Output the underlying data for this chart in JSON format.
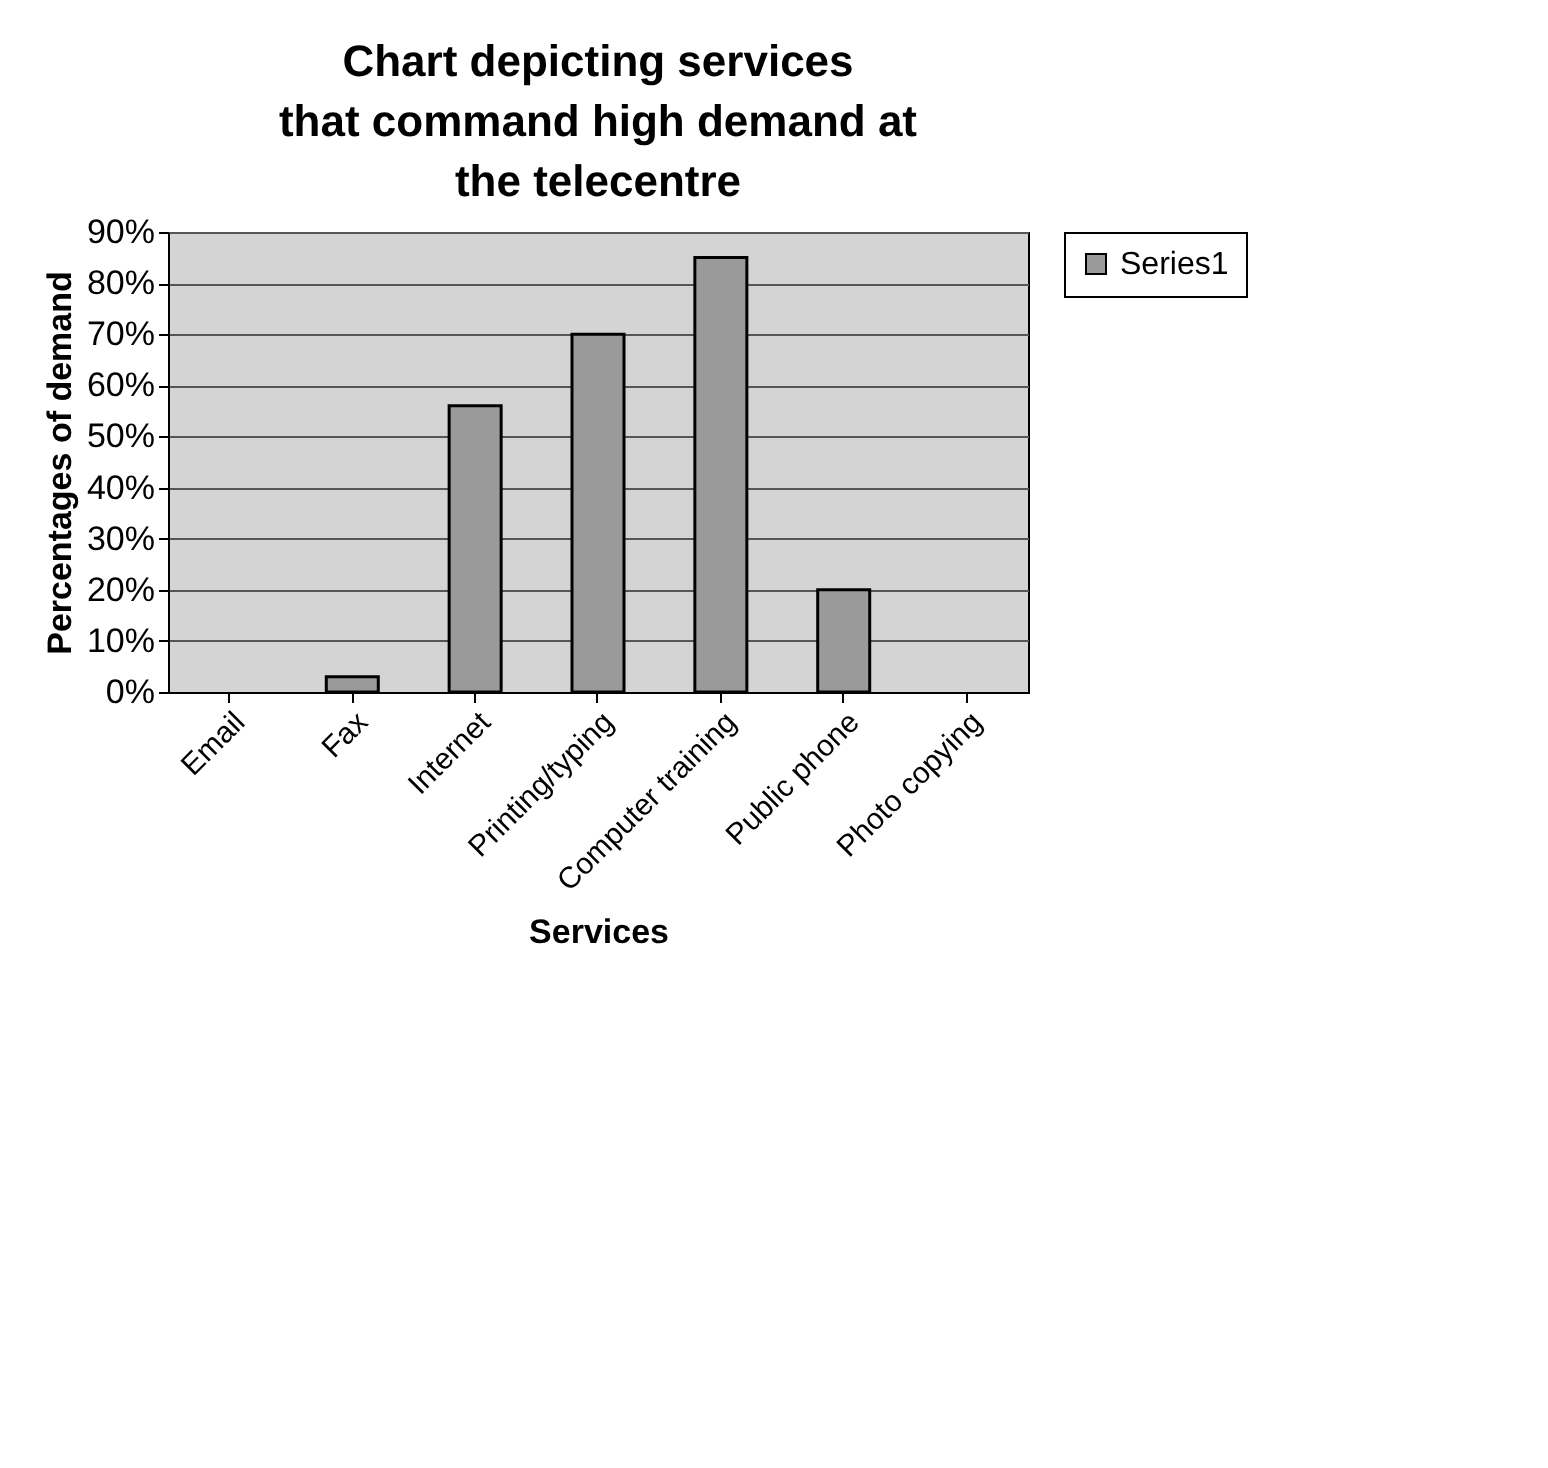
{
  "chart_data": {
    "type": "bar",
    "title": "Chart depicting services that command high demand at the telecentre",
    "xlabel": "Services",
    "ylabel": "Percentages of demand",
    "categories": [
      "Email",
      "Fax",
      "Internet",
      "Printing/typing",
      "Computer training",
      "Public phone",
      "Photo copying"
    ],
    "series": [
      {
        "name": "Series1",
        "color": "#9a9a9a",
        "values": [
          0,
          3,
          56,
          70,
          85,
          20,
          0
        ]
      }
    ],
    "ylim": [
      0,
      90
    ],
    "yticks": [
      {
        "value": 0,
        "label": "0%"
      },
      {
        "value": 10,
        "label": "10%"
      },
      {
        "value": 20,
        "label": "20%"
      },
      {
        "value": 30,
        "label": "30%"
      },
      {
        "value": 40,
        "label": "40%"
      },
      {
        "value": 50,
        "label": "50%"
      },
      {
        "value": 60,
        "label": "60%"
      },
      {
        "value": 70,
        "label": "70%"
      },
      {
        "value": 80,
        "label": "80%"
      },
      {
        "value": 90,
        "label": "90%"
      }
    ],
    "grid": "y",
    "legend": "right"
  }
}
